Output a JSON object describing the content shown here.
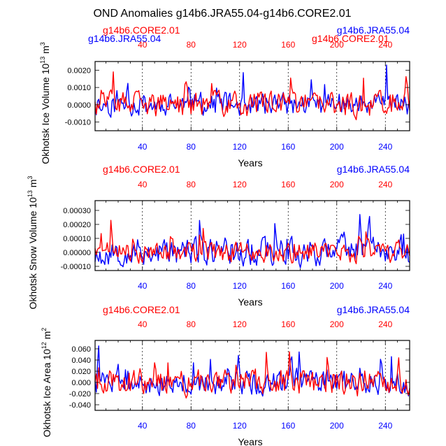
{
  "title": "OND Anomalies g14b6.JRA55.04-g14b6.CORE2.01",
  "colors": {
    "jra": "#0000ff",
    "core": "#ff0000",
    "axis": "#000000"
  },
  "chart_data": [
    {
      "type": "line",
      "ylabel": "Okhotsk Ice Volume 10^13 m^3",
      "xlabel": "Years",
      "xlim": [
        1,
        260
      ],
      "ylim": [
        -0.0015,
        0.0025
      ],
      "yticks": [
        "0.0020",
        "0.0010",
        "0.0000",
        "-0.0010"
      ],
      "ytick_values": [
        0.002,
        0.001,
        0.0,
        -0.001
      ],
      "xticks": [
        40,
        80,
        120,
        160,
        200,
        240
      ],
      "top_labels": {
        "left": "g14b6.CORE2.01",
        "right": "g14b6.JRA55.04"
      },
      "overlap_labels": {
        "left": "g14b6.JRA55.04",
        "right": "g14b6.CORE2.01"
      },
      "series": [
        {
          "name": "g14b6.JRA55.04",
          "color": "#0000ff",
          "seed": 11,
          "amplitude": 0.00072,
          "offset": 0.0,
          "clip": [
            -0.0015,
            0.0025
          ]
        },
        {
          "name": "g14b6.CORE2.01",
          "color": "#ff0000",
          "seed": 37,
          "amplitude": 0.0008,
          "offset": 0.0,
          "clip": [
            -0.0015,
            0.0025
          ]
        }
      ]
    },
    {
      "type": "line",
      "ylabel": "Okhotsk Snow Volume 10^13 m^3",
      "xlabel": "Years",
      "xlim": [
        1,
        260
      ],
      "ylim": [
        -0.00013,
        0.00037
      ],
      "yticks": [
        "0.00030",
        "0.00020",
        "0.00010",
        "0.00000",
        "-0.00010"
      ],
      "ytick_values": [
        0.0003,
        0.0002,
        0.0001,
        0.0,
        -0.0001
      ],
      "xticks": [
        40,
        80,
        120,
        160,
        200,
        240
      ],
      "top_labels": {
        "left": "g14b6.CORE2.01",
        "right": "g14b6.JRA55.04"
      },
      "series": [
        {
          "name": "g14b6.JRA55.04",
          "color": "#0000ff",
          "seed": 53,
          "amplitude": 0.00011,
          "offset": 5e-06,
          "clip": [
            -0.00012,
            0.00035
          ]
        },
        {
          "name": "g14b6.CORE2.01",
          "color": "#ff0000",
          "seed": 71,
          "amplitude": 8e-05,
          "offset": 0.0,
          "clip": [
            -0.00012,
            0.00025
          ]
        }
      ]
    },
    {
      "type": "line",
      "ylabel": "Okhotsk Ice Area 10^12 m^2",
      "xlabel": "Years",
      "xlim": [
        1,
        260
      ],
      "ylim": [
        -0.05,
        0.075
      ],
      "yticks": [
        "0.060",
        "0.040",
        "0.020",
        "0.000",
        "-0.020",
        "-0.040"
      ],
      "ytick_values": [
        0.06,
        0.04,
        0.02,
        0.0,
        -0.02,
        -0.04
      ],
      "xticks": [
        40,
        80,
        120,
        160,
        200,
        240
      ],
      "top_labels": {
        "left": "g14b6.CORE2.01",
        "right": "g14b6.JRA55.04"
      },
      "series": [
        {
          "name": "g14b6.JRA55.04",
          "color": "#0000ff",
          "seed": 91,
          "amplitude": 0.024,
          "offset": 0.0,
          "clip": [
            -0.05,
            0.07
          ]
        },
        {
          "name": "g14b6.CORE2.01",
          "color": "#ff0000",
          "seed": 113,
          "amplitude": 0.026,
          "offset": 0.0,
          "clip": [
            -0.05,
            0.065
          ]
        }
      ]
    }
  ]
}
